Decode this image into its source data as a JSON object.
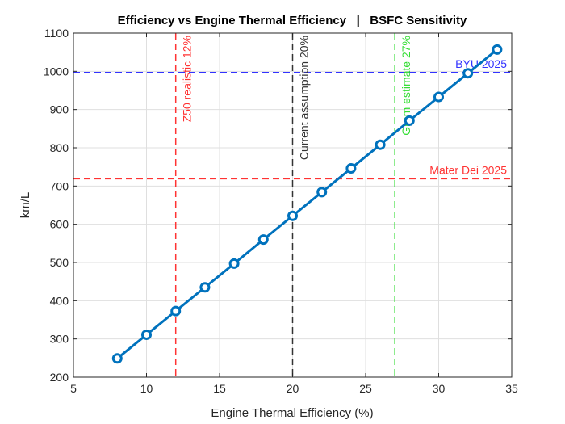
{
  "chart_data": {
    "type": "line",
    "title": "Efficiency vs Engine Thermal Efficiency   |   BSFC Sensitivity",
    "xlabel": "Engine Thermal Efficiency (%)",
    "ylabel": "km/L",
    "xlim": [
      5,
      35
    ],
    "ylim": [
      200,
      1100
    ],
    "xticks": [
      5,
      10,
      15,
      20,
      25,
      30,
      35
    ],
    "yticks": [
      200,
      300,
      400,
      500,
      600,
      700,
      800,
      900,
      1000,
      1100
    ],
    "grid": true,
    "series": [
      {
        "color": "#0072BD",
        "marker": "circle",
        "x": [
          8,
          10,
          12,
          14,
          16,
          18,
          20,
          22,
          24,
          26,
          28,
          30,
          32,
          34
        ],
        "y": [
          249,
          311,
          373,
          435,
          497,
          560,
          622,
          684,
          746,
          808,
          871,
          933,
          995,
          1057
        ]
      }
    ],
    "vlines": [
      {
        "x": 12,
        "label": "Z50 realistic 12%",
        "color": "#FF3333"
      },
      {
        "x": 20,
        "label": "Current assumption 20%",
        "color": "#333333"
      },
      {
        "x": 27,
        "label": "Grom estimate 27%",
        "color": "#33DD33"
      }
    ],
    "hlines": [
      {
        "y": 997,
        "label": "BYU 2025",
        "color": "#3333FF"
      },
      {
        "y": 719,
        "label": "Mater Dei 2025",
        "color": "#FF3333"
      }
    ]
  }
}
